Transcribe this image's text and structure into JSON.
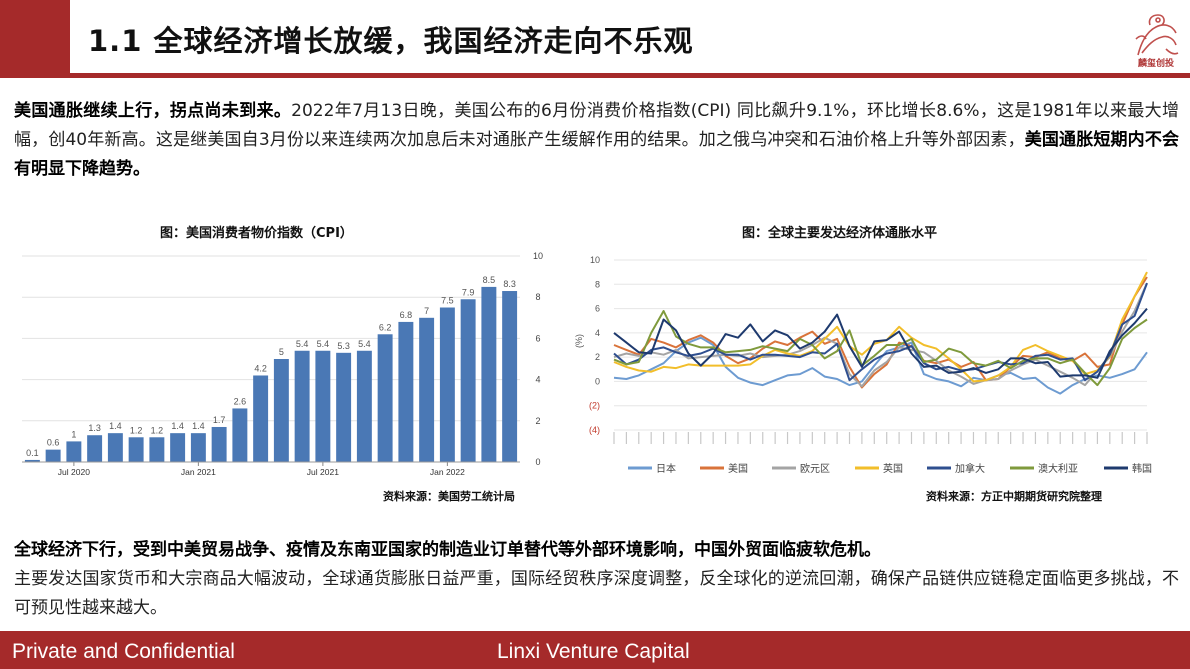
{
  "slide": {
    "title": "1.1 全球经济增长放缓，我国经济走向不乐观",
    "logo_text": "麟玺创投",
    "para1_bold": "美国通胀继续上行，拐点尚未到来。",
    "para1_text": "2022年7月13日晚，美国公布的6月份消费价格指数(CPI) 同比飙升9.1%，环比增长8.6%，这是1981年以来最大增幅，创40年新高。这是继美国自3月份以来连续两次加息后未对通胀产生缓解作用的结果。加之俄乌冲突和石油价格上升等外部因素，",
    "para1_bold2": "美国通胀短期内不会有明显下降趋势。",
    "para2_bold": "全球经济下行，受到中美贸易战争、疫情及东南亚国家的制造业订单替代等外部环境影响，中国外贸面临疲软危机。",
    "para2_text": "主要发达国家货币和大宗商品大幅波动，全球通货膨胀日益严重，国际经贸秩序深度调整，反全球化的逆流回潮，确保产品链供应链稳定面临更多挑战，不可预见性越来越大。",
    "footer_left": "Private and Confidential",
    "footer_right": "Linxi Venture Capital",
    "colors": {
      "brand": "#a52a2a",
      "bar": "#4a78b5"
    }
  },
  "chart_data": [
    {
      "type": "bar",
      "title": "图：美国消费者物价指数（CPI）",
      "source": "资料来源：美国劳工统计局",
      "x_tick_labels": [
        "Jul 2020",
        "Jan 2021",
        "Jul 2021",
        "Jan 2022"
      ],
      "x_tick_positions": [
        2,
        8,
        14,
        20
      ],
      "values": [
        0.1,
        0.6,
        1,
        1.3,
        1.4,
        1.2,
        1.2,
        1.4,
        1.4,
        1.7,
        2.6,
        4.2,
        5,
        5.4,
        5.4,
        5.3,
        5.4,
        6.2,
        6.8,
        7,
        7.5,
        7.9,
        8.5,
        8.3
      ],
      "data_labels": [
        "0.1",
        "0.6",
        "1",
        "1.3",
        "1.4",
        "1.2",
        "1.2",
        "1.4",
        "1.4",
        "1.7",
        "2.6",
        "4.2",
        "5",
        "5.4",
        "5.4",
        "5.3",
        "5.4",
        "6.2",
        "6.8",
        "7",
        "7.5",
        "7.9",
        "8.5",
        "8.3"
      ],
      "y_ticks": [
        "0",
        "2",
        "4",
        "6",
        "8",
        "10"
      ],
      "ylim": [
        0,
        10
      ],
      "y_axis_side": "right",
      "grid": true
    },
    {
      "type": "line",
      "title": "图：全球主要发达经济体通胀水平",
      "source": "资料来源：方正中期期货研究院整理",
      "ylabel": "(%)",
      "y_ticks": [
        "10",
        "8",
        "6",
        "4",
        "2",
        "0",
        "(2)",
        "(4)"
      ],
      "ylim": [
        -4,
        10
      ],
      "grid": true,
      "x_points": 44,
      "series": [
        {
          "name": "日本",
          "color": "#6d9bd1",
          "values": [
            0.3,
            0.2,
            0.5,
            1.0,
            1.5,
            2.5,
            3.2,
            3.6,
            3.0,
            1.2,
            0.3,
            -0.1,
            -0.3,
            0.1,
            0.5,
            0.6,
            1.1,
            0.4,
            0.2,
            -0.3,
            0.0,
            1.3,
            2.5,
            2.8,
            3.2,
            0.6,
            0.2,
            0.0,
            -0.4,
            0.3,
            0.1,
            0.5,
            0.7,
            0.2,
            0.3,
            -0.5,
            -1.0,
            -0.3,
            0.2,
            0.5,
            0.3,
            0.6,
            1.0,
            2.4
          ]
        },
        {
          "name": "美国",
          "color": "#d9733a",
          "values": [
            3.0,
            2.6,
            2.2,
            3.5,
            3.2,
            2.8,
            3.4,
            3.8,
            3.2,
            2.1,
            1.5,
            1.9,
            2.7,
            3.3,
            3.0,
            3.6,
            4.1,
            3.1,
            3.5,
            1.2,
            -0.5,
            0.6,
            1.4,
            3.2,
            2.9,
            1.7,
            1.5,
            1.8,
            1.2,
            1.6,
            0.1,
            0.2,
            1.2,
            2.1,
            2.0,
            2.4,
            1.9,
            1.7,
            2.3,
            1.2,
            1.4,
            4.7,
            7.0,
            8.6
          ]
        },
        {
          "name": "欧元区",
          "color": "#a4a4a4",
          "values": [
            2.0,
            2.3,
            2.1,
            2.4,
            2.2,
            2.6,
            1.9,
            2.0,
            2.1,
            2.2,
            2.1,
            2.3,
            2.0,
            2.1,
            2.2,
            2.5,
            3.0,
            3.6,
            3.1,
            0.6,
            -0.4,
            0.9,
            1.6,
            2.8,
            2.6,
            2.4,
            1.7,
            0.9,
            0.4,
            -0.2,
            0.1,
            0.2,
            0.9,
            1.4,
            1.8,
            1.3,
            0.8,
            0.3,
            -0.3,
            0.9,
            2.0,
            4.1,
            5.8,
            8.1
          ]
        },
        {
          "name": "英国",
          "color": "#f2be2a",
          "values": [
            1.6,
            1.2,
            0.9,
            0.8,
            1.2,
            1.1,
            1.4,
            1.3,
            1.3,
            1.3,
            1.3,
            1.4,
            2.1,
            2.6,
            2.3,
            2.1,
            2.5,
            3.5,
            4.5,
            2.9,
            2.2,
            3.1,
            3.4,
            4.5,
            3.6,
            3.0,
            2.7,
            1.9,
            1.0,
            0.0,
            0.1,
            0.5,
            1.2,
            2.6,
            3.0,
            2.5,
            2.1,
            1.7,
            0.6,
            0.9,
            2.1,
            5.1,
            7.0,
            9.0
          ]
        },
        {
          "name": "加拿大",
          "color": "#2f4f8f",
          "values": [
            2.3,
            1.4,
            1.8,
            2.6,
            2.8,
            2.4,
            2.1,
            2.3,
            2.7,
            2.2,
            2.2,
            1.8,
            2.2,
            2.2,
            2.1,
            2.0,
            2.4,
            2.3,
            3.1,
            0.1,
            1.0,
            1.8,
            2.3,
            2.5,
            2.9,
            1.5,
            1.0,
            1.2,
            0.9,
            1.0,
            1.3,
            1.6,
            1.4,
            1.5,
            2.1,
            2.2,
            1.8,
            1.9,
            0.1,
            0.8,
            2.2,
            4.7,
            5.4,
            8.1
          ]
        },
        {
          "name": "澳大利亚",
          "color": "#7f9a3c",
          "values": [
            1.8,
            1.4,
            1.6,
            4.0,
            5.8,
            3.7,
            3.1,
            2.8,
            2.8,
            2.4,
            2.5,
            2.6,
            2.9,
            2.7,
            2.5,
            3.5,
            3.0,
            1.9,
            2.5,
            4.2,
            1.3,
            2.1,
            3.0,
            3.0,
            3.5,
            1.6,
            1.8,
            2.7,
            2.4,
            1.5,
            1.3,
            1.7,
            1.1,
            1.7,
            1.9,
            1.9,
            1.5,
            1.8,
            0.7,
            -0.3,
            1.1,
            3.5,
            4.4,
            5.1
          ]
        },
        {
          "name": "韩国",
          "color": "#1e3a6e",
          "values": [
            4.0,
            3.2,
            2.4,
            2.3,
            5.1,
            4.2,
            2.3,
            1.3,
            2.3,
            3.9,
            3.6,
            4.7,
            3.3,
            4.2,
            3.8,
            2.7,
            3.2,
            4.1,
            5.5,
            2.9,
            1.2,
            3.3,
            3.4,
            4.1,
            2.3,
            1.2,
            1.3,
            0.7,
            0.8,
            1.1,
            0.7,
            1.0,
            1.9,
            1.9,
            1.5,
            1.6,
            0.4,
            0.5,
            0.5,
            0.3,
            2.5,
            3.8,
            4.8,
            6.0
          ]
        }
      ]
    }
  ]
}
